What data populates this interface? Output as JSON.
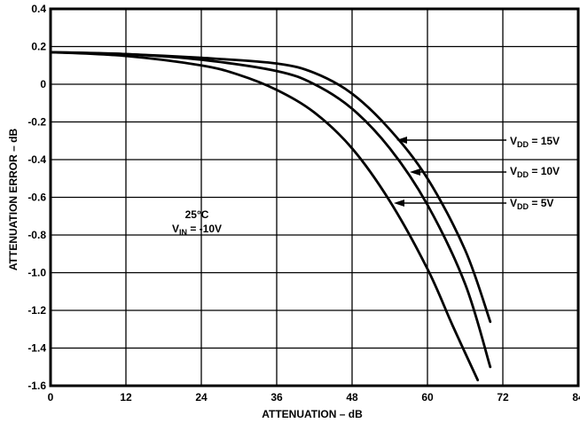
{
  "chart_data": {
    "type": "line",
    "xlabel": "ATTENUATION – dB",
    "ylabel": "ATTENUATION ERROR – dB",
    "xlim": [
      0,
      84
    ],
    "ylim": [
      -1.6,
      0.4
    ],
    "x_ticks": [
      "0",
      "12",
      "24",
      "36",
      "48",
      "60",
      "72",
      "84"
    ],
    "y_ticks": [
      "0.4",
      "0.2",
      "0",
      "-0.2",
      "-0.4",
      "-0.6",
      "-0.8",
      "-1.0",
      "-1.2",
      "-1.4",
      "-1.6"
    ],
    "grid": true,
    "conditions": {
      "temp": "25°C",
      "vin_prefix": "V",
      "vin_sub": "IN",
      "vin_value": " = -10V"
    },
    "series": [
      {
        "name": "VDD = 15V",
        "label_prefix": "V",
        "label_sub": "DD",
        "label_value": " = 15V",
        "points": [
          [
            0,
            0.17
          ],
          [
            12,
            0.16
          ],
          [
            24,
            0.14
          ],
          [
            36,
            0.11
          ],
          [
            42,
            0.06
          ],
          [
            48,
            -0.05
          ],
          [
            54,
            -0.24
          ],
          [
            60,
            -0.5
          ],
          [
            66,
            -0.88
          ],
          [
            70,
            -1.26
          ]
        ]
      },
      {
        "name": "VDD = 10V",
        "label_prefix": "V",
        "label_sub": "DD",
        "label_value": " = 10V",
        "points": [
          [
            0,
            0.17
          ],
          [
            12,
            0.16
          ],
          [
            24,
            0.13
          ],
          [
            36,
            0.07
          ],
          [
            42,
            0.0
          ],
          [
            48,
            -0.13
          ],
          [
            54,
            -0.34
          ],
          [
            60,
            -0.64
          ],
          [
            66,
            -1.06
          ],
          [
            70,
            -1.5
          ]
        ]
      },
      {
        "name": "VDD = 5V",
        "label_prefix": "V",
        "label_sub": "DD",
        "label_value": " = 5V",
        "points": [
          [
            0,
            0.17
          ],
          [
            12,
            0.15
          ],
          [
            24,
            0.1
          ],
          [
            30,
            0.05
          ],
          [
            36,
            -0.03
          ],
          [
            42,
            -0.15
          ],
          [
            48,
            -0.34
          ],
          [
            54,
            -0.62
          ],
          [
            60,
            -0.98
          ],
          [
            64,
            -1.28
          ],
          [
            68,
            -1.57
          ]
        ]
      }
    ]
  }
}
